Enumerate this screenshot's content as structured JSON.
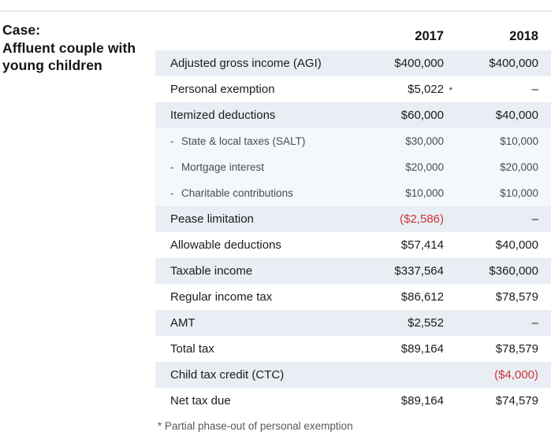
{
  "case_title": {
    "lines": [
      "Case:",
      "Affluent couple with",
      "young children"
    ]
  },
  "chart_data": {
    "type": "table",
    "title": "Case: Affluent couple with young children",
    "columns": [
      "2017",
      "2018"
    ],
    "rows": [
      [
        "Adjusted gross income (AGI)",
        "$400,000",
        "$400,000"
      ],
      [
        "Personal exemption",
        "$5,022",
        "–"
      ],
      [
        "Itemized deductions",
        "$60,000",
        "$40,000"
      ],
      [
        "State & local taxes (SALT)",
        "$30,000",
        "$10,000"
      ],
      [
        "Mortgage interest",
        "$20,000",
        "$20,000"
      ],
      [
        "Charitable contributions",
        "$10,000",
        "$10,000"
      ],
      [
        "Pease limitation",
        "($2,586)",
        "–"
      ],
      [
        "Allowable deductions",
        "$57,414",
        "$40,000"
      ],
      [
        "Taxable income",
        "$337,564",
        "$360,000"
      ],
      [
        "Regular income tax",
        "$86,612",
        "$78,579"
      ],
      [
        "AMT",
        "$2,552",
        "–"
      ],
      [
        "Total tax",
        "$89,164",
        "$78,579"
      ],
      [
        "Child tax credit (CTC)",
        "",
        "($4,000)"
      ],
      [
        "Net tax due",
        "$89,164",
        "$74,579"
      ]
    ],
    "footnote": "* Partial phase-out of personal exemption"
  },
  "table": {
    "row_meta": [
      {
        "shade": "blue"
      },
      {
        "shade": "white",
        "mark_2017": "*"
      },
      {
        "shade": "blue"
      },
      {
        "shade": "pale",
        "sub": true,
        "bullet": "-"
      },
      {
        "shade": "pale",
        "sub": true,
        "bullet": "-"
      },
      {
        "shade": "pale",
        "sub": true,
        "bullet": "-"
      },
      {
        "shade": "blue"
      },
      {
        "shade": "white"
      },
      {
        "shade": "blue"
      },
      {
        "shade": "white"
      },
      {
        "shade": "blue"
      },
      {
        "shade": "white"
      },
      {
        "shade": "blue"
      },
      {
        "shade": "white"
      }
    ]
  },
  "colors": {
    "row_blue": "#e9eef5",
    "row_pale": "#f4f7fb",
    "negative_red": "#d13434",
    "top_rule": "#e5eaf1",
    "sub_text": "#4c4c4c",
    "main_text": "#1b1b1b"
  }
}
